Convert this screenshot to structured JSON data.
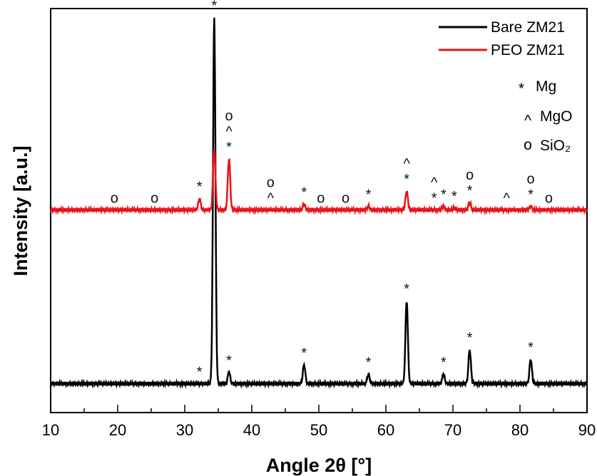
{
  "chart_data": {
    "type": "line",
    "title": "",
    "xlabel": "Angle 2θ [°]",
    "ylabel": "Intensity [a.u.]",
    "xlim": [
      10,
      90
    ],
    "xticks": [
      "10",
      "20",
      "30",
      "40",
      "50",
      "60",
      "70",
      "80",
      "90"
    ],
    "grid": false,
    "legend_position": "top-right",
    "colors": {
      "bare": "#000000",
      "peo": "#e8141b"
    },
    "series": [
      {
        "name": "Bare ZM21",
        "color": "#000000",
        "baseline": 0.02,
        "peaks": [
          {
            "x": 32.2,
            "y": 0.0,
            "marker": "*"
          },
          {
            "x": 34.4,
            "y": 0.97,
            "marker": "*"
          },
          {
            "x": 36.6,
            "y": 0.03,
            "marker": "*"
          },
          {
            "x": 47.8,
            "y": 0.05,
            "marker": "*"
          },
          {
            "x": 57.4,
            "y": 0.025,
            "marker": "*"
          },
          {
            "x": 63.1,
            "y": 0.22,
            "marker": "*"
          },
          {
            "x": 68.6,
            "y": 0.025,
            "marker": "*"
          },
          {
            "x": 72.5,
            "y": 0.09,
            "marker": "*"
          },
          {
            "x": 81.6,
            "y": 0.065,
            "marker": "*"
          }
        ]
      },
      {
        "name": "PEO ZM21",
        "color": "#e8141b",
        "baseline": 0.48,
        "peaks": [
          {
            "x": 19.5,
            "y": 0.0,
            "marker": "o"
          },
          {
            "x": 25.5,
            "y": 0.0,
            "marker": "o"
          },
          {
            "x": 32.2,
            "y": 0.03,
            "marker": "*"
          },
          {
            "x": 34.4,
            "y": 0.16,
            "marker": ""
          },
          {
            "x": 36.6,
            "y": 0.135,
            "marker": "* ^ o"
          },
          {
            "x": 42.8,
            "y": 0.0,
            "marker": "^ o"
          },
          {
            "x": 47.8,
            "y": 0.015,
            "marker": "*"
          },
          {
            "x": 50.3,
            "y": 0.0,
            "marker": "o"
          },
          {
            "x": 54.0,
            "y": 0.0,
            "marker": "o"
          },
          {
            "x": 57.4,
            "y": 0.01,
            "marker": "*"
          },
          {
            "x": 63.1,
            "y": 0.05,
            "marker": "* ^"
          },
          {
            "x": 67.2,
            "y": 0.0,
            "marker": "* ^"
          },
          {
            "x": 68.6,
            "y": 0.01,
            "marker": "*"
          },
          {
            "x": 70.2,
            "y": 0.005,
            "marker": "*"
          },
          {
            "x": 72.5,
            "y": 0.02,
            "marker": "* o"
          },
          {
            "x": 78.0,
            "y": 0.0,
            "marker": "^"
          },
          {
            "x": 81.6,
            "y": 0.01,
            "marker": "* o"
          },
          {
            "x": 84.3,
            "y": 0.0,
            "marker": "o"
          }
        ]
      }
    ],
    "marker_legend": [
      {
        "symbol": "*",
        "label": "Mg"
      },
      {
        "symbol": "^",
        "label": "MgO"
      },
      {
        "symbol": "o",
        "label": "SiO₂"
      }
    ]
  }
}
